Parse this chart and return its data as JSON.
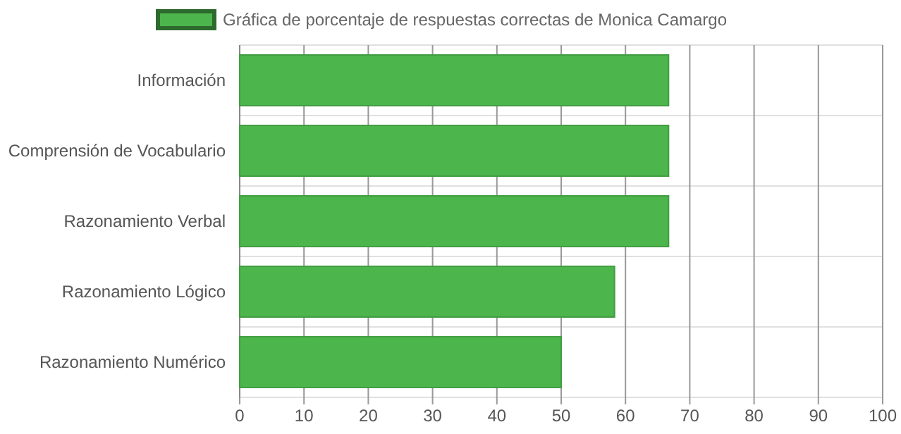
{
  "chart_data": {
    "type": "bar",
    "orientation": "horizontal",
    "categories": [
      "Información",
      "Comprensión de Vocabulario",
      "Razonamiento Verbal",
      "Razonamiento Lógico",
      "Razonamiento Numérico"
    ],
    "series": [
      {
        "name": "Gráfica de porcentaje de respuestas correctas de Monica Camargo",
        "color": "#4cb54c",
        "values": [
          66.7,
          66.7,
          66.7,
          58.3,
          50
        ]
      }
    ],
    "xlim": [
      0,
      100
    ],
    "xticks": [
      0,
      10,
      20,
      30,
      40,
      50,
      60,
      70,
      80,
      90,
      100
    ],
    "grid": true,
    "legend": "top"
  }
}
